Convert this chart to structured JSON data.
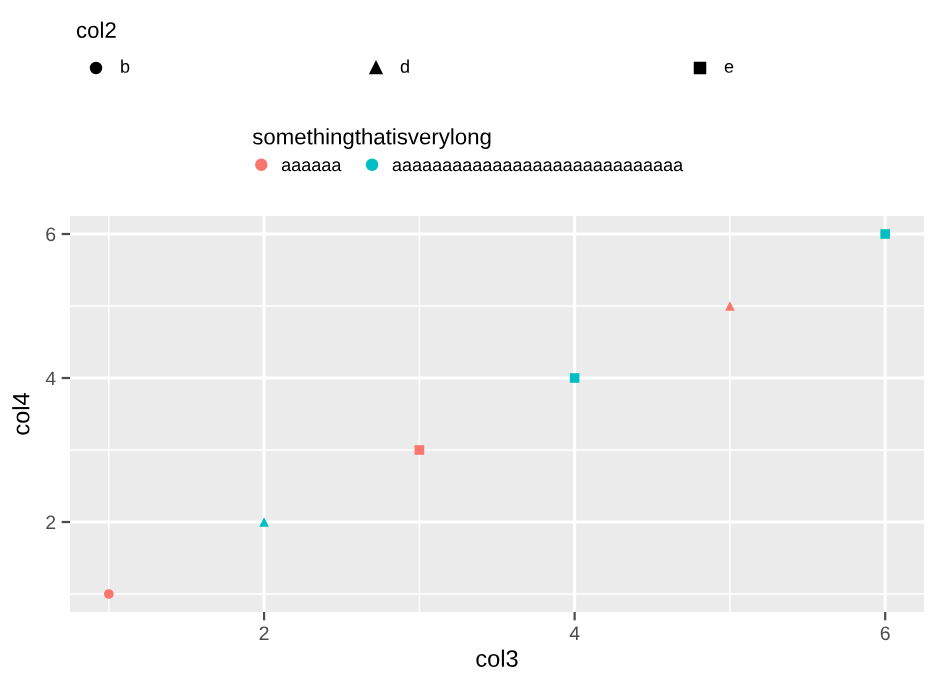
{
  "chart_data": {
    "type": "scatter",
    "xlabel": "col3",
    "ylabel": "col4",
    "legend_title": [
      "col2",
      "somethingthatisverylong"
    ],
    "annotations": [
      "b",
      "d",
      "e"
    ],
    "series": [
      {
        "marker": "circle",
        "x": [
          1
        ],
        "values": [
          1
        ],
        "colors": [
          "#f8766d"
        ]
      },
      {
        "marker": "triangle",
        "x": [
          2,
          5
        ],
        "values": [
          2,
          5
        ],
        "colors": [
          "#00bfc4",
          "#f8766d"
        ]
      },
      {
        "marker": "square",
        "x": [
          3,
          4,
          6
        ],
        "values": [
          3,
          4,
          6
        ],
        "colors": [
          "#f8766d",
          "#00bfc4",
          "#00bfc4"
        ]
      },
      {
        "name": "aaaaaa",
        "marker": "circle",
        "color": "#f8766d"
      },
      {
        "name": "aaaaaaaaaaaaaaaaaaaaaaaaaaaaa",
        "marker": "circle",
        "color": "#00bfc4"
      }
    ],
    "xlim": [
      0.75,
      6.25
    ],
    "ylim": [
      0.75,
      6.25
    ],
    "xticks": [
      2,
      4,
      6
    ],
    "yticks": [
      2,
      4,
      6
    ],
    "grid": true,
    "legend": "top"
  }
}
